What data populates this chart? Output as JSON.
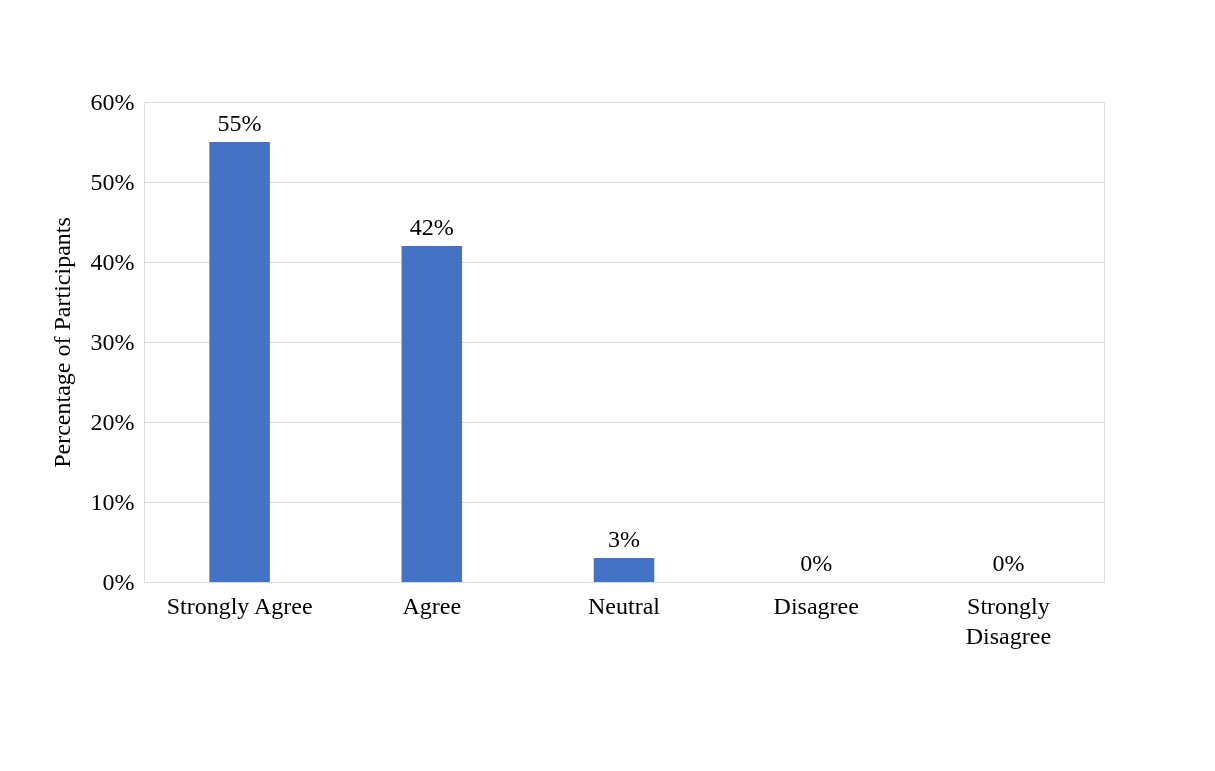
{
  "chart_data": {
    "type": "bar",
    "ylabel": "Percentage of Participants",
    "categories": [
      "Strongly Agree",
      "Agree",
      "Neutral",
      "Disagree",
      "Strongly Disagree"
    ],
    "values": [
      55,
      42,
      3,
      0,
      0
    ],
    "value_labels": [
      "55%",
      "42%",
      "3%",
      "0%",
      "0%"
    ],
    "color": "#4472c4",
    "ylim": [
      0,
      60
    ],
    "yticks": [
      {
        "value": 0,
        "label": "0%"
      },
      {
        "value": 10,
        "label": "10%"
      },
      {
        "value": 20,
        "label": "20%"
      },
      {
        "value": 30,
        "label": "30%"
      },
      {
        "value": 40,
        "label": "40%"
      },
      {
        "value": 50,
        "label": "50%"
      },
      {
        "value": 60,
        "label": "60%"
      }
    ],
    "grid": "y"
  }
}
